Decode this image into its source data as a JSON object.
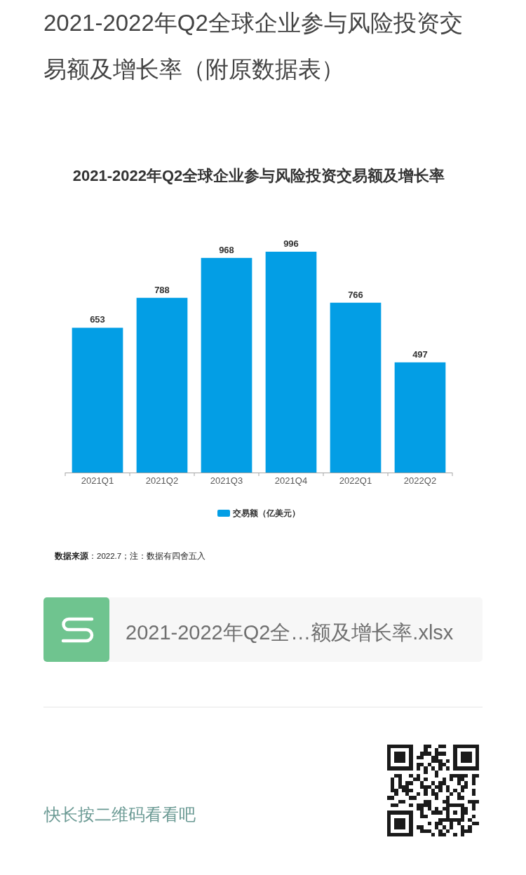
{
  "chart_data": {
    "type": "bar",
    "title": "2021-2022年Q2全球企业参与风险投资交易额及增长率（附原数据表）",
    "subtitle": "2021-2022年Q2全球企业参与风险投资交易额及增长率",
    "categories": [
      "2021Q1",
      "2021Q2",
      "2021Q3",
      "2021Q4",
      "2022Q1",
      "2022Q2"
    ],
    "series": [
      {
        "name": "交易额（亿美元）",
        "color": "#039ee5",
        "values": [
          653,
          788,
          968,
          996,
          766,
          497
        ]
      }
    ],
    "data_labels": true,
    "legend": "bottom",
    "annotations": [
      "**数据来源**：2022.7；注：数据有四舍五入",
      "2021-2022年Q2全…额及增长率.xlsx",
      "快长按二维码看看吧"
    ]
  }
}
